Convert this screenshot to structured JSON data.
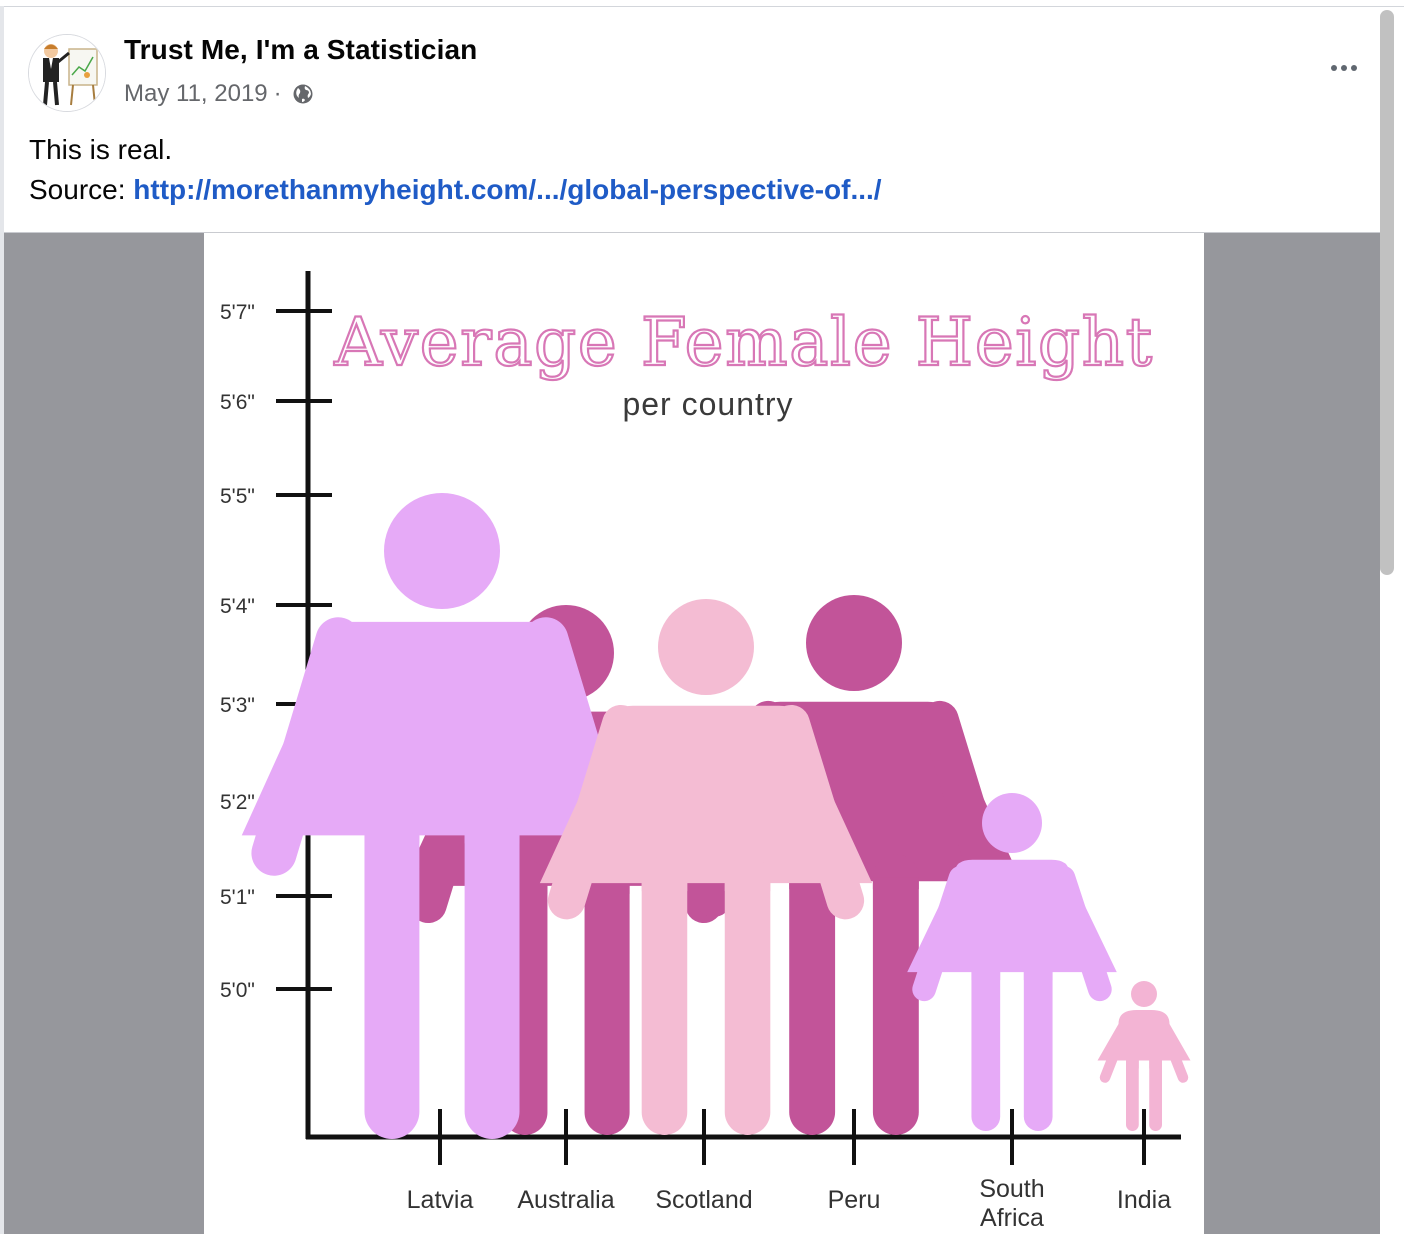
{
  "post": {
    "author": "Trust Me, I'm a Statistician",
    "date": "May 11, 2019",
    "separator": "·",
    "audience_icon": "globe-icon",
    "more_icon": "more-options-icon",
    "text_line1": "This is real.",
    "source_label": "Source: ",
    "source_link": "http://morethanmyheight.com/.../global-perspective-of.../"
  },
  "colors": {
    "link": "#1f5bc6",
    "lavender": "#e6aaf7",
    "magenta": "#c25499",
    "light_pink": "#f4bcd3",
    "india_pink": "#f3b4d4",
    "title_pink": "#d877b6"
  },
  "chart_data": {
    "type": "pictograph",
    "title": "Average Female Height",
    "subtitle": "per country",
    "y_ticks": [
      "5'7\"",
      "5'6\"",
      "5'5\"",
      "5'4\"",
      "5'3\"",
      "5'2\"",
      "5'1\"",
      "5'0\""
    ],
    "categories": [
      "Latvia",
      "Australia",
      "Scotland",
      "Peru",
      "South Africa",
      "India"
    ],
    "figure_colors": [
      "lavender",
      "magenta",
      "light_pink",
      "magenta",
      "lavender",
      "india_pink"
    ],
    "y_axis_break": true
  }
}
